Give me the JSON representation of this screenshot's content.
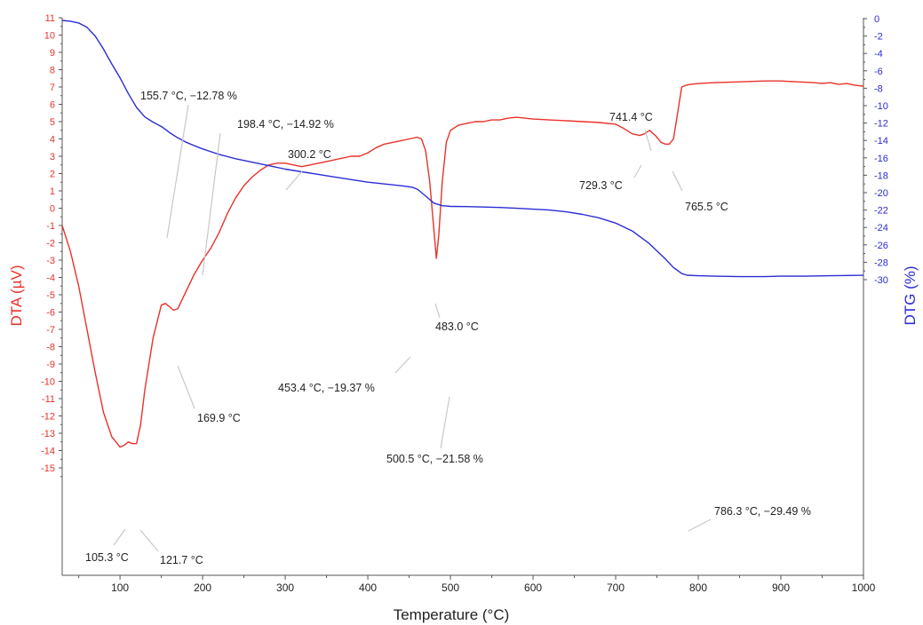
{
  "chart_data": {
    "type": "line",
    "title": "",
    "xlabel": "Temperature (°C)",
    "ylabel_left": "DTA (µV)",
    "ylabel_right": "DTG (%)",
    "xlim": [
      30,
      1000
    ],
    "ylim_left": [
      -16,
      11
    ],
    "ylim_right": [
      -31,
      0
    ],
    "x_ticks": [
      "100",
      "200",
      "300",
      "400",
      "500",
      "600",
      "700",
      "800",
      "900",
      "1000"
    ],
    "y_left_ticks": [
      "11",
      "10",
      "9",
      "8",
      "7",
      "6",
      "5",
      "4",
      "3",
      "2",
      "1",
      "0",
      "-1",
      "-2",
      "-3",
      "-4",
      "-5",
      "-6",
      "-7",
      "-8",
      "-9",
      "-10",
      "-11",
      "-12",
      "-13",
      "-14",
      "-15"
    ],
    "y_right_ticks": [
      "0",
      "-2",
      "-4",
      "-6",
      "-8",
      "-10",
      "-12",
      "-14",
      "-16",
      "-18",
      "-20",
      "-22",
      "-24",
      "-26",
      "-28",
      "-30"
    ],
    "colors": {
      "dta": "#e8322a",
      "dtg": "#2b2bd6",
      "axis": "#555555",
      "leader": "#c8c8c8"
    },
    "series": [
      {
        "axis": "left",
        "color": "#e8322a",
        "x": [
          30,
          40,
          50,
          60,
          70,
          80,
          90,
          100,
          105,
          110,
          115,
          120,
          125,
          130,
          140,
          150,
          155,
          160,
          165,
          170,
          180,
          190,
          200,
          210,
          220,
          230,
          240,
          250,
          260,
          270,
          280,
          290,
          300,
          310,
          320,
          330,
          340,
          350,
          360,
          370,
          380,
          390,
          400,
          410,
          420,
          430,
          440,
          450,
          460,
          465,
          470,
          475,
          480,
          483,
          486,
          490,
          495,
          500,
          510,
          520,
          530,
          540,
          550,
          560,
          570,
          580,
          590,
          600,
          620,
          640,
          660,
          680,
          700,
          710,
          720,
          729,
          735,
          741,
          748,
          755,
          760,
          765,
          770,
          775,
          780,
          785,
          790,
          800,
          820,
          850,
          880,
          900,
          920,
          940,
          950,
          960,
          970,
          980,
          990,
          1000
        ],
        "y": [
          -1.0,
          -2.5,
          -4.5,
          -7.0,
          -9.5,
          -11.8,
          -13.2,
          -13.8,
          -13.7,
          -13.5,
          -13.6,
          -13.6,
          -12.5,
          -10.5,
          -7.5,
          -5.6,
          -5.5,
          -5.7,
          -5.9,
          -5.8,
          -4.8,
          -3.8,
          -3.0,
          -2.3,
          -1.4,
          -0.3,
          0.6,
          1.3,
          1.8,
          2.2,
          2.5,
          2.6,
          2.6,
          2.5,
          2.4,
          2.5,
          2.6,
          2.7,
          2.8,
          2.9,
          3.0,
          3.0,
          3.2,
          3.5,
          3.7,
          3.8,
          3.9,
          4.0,
          4.1,
          4.0,
          3.3,
          1.5,
          -1.3,
          -2.9,
          -1.5,
          1.5,
          3.8,
          4.5,
          4.8,
          4.9,
          5.0,
          5.0,
          5.1,
          5.1,
          5.2,
          5.25,
          5.2,
          5.15,
          5.1,
          5.05,
          5.0,
          4.95,
          4.85,
          4.6,
          4.3,
          4.2,
          4.3,
          4.5,
          4.2,
          3.8,
          3.7,
          3.7,
          4.0,
          5.5,
          7.0,
          7.1,
          7.15,
          7.2,
          7.25,
          7.3,
          7.35,
          7.35,
          7.3,
          7.25,
          7.2,
          7.25,
          7.15,
          7.2,
          7.1,
          7.05
        ]
      },
      {
        "axis": "right",
        "color": "#2b2bd6",
        "x": [
          30,
          40,
          50,
          60,
          70,
          80,
          90,
          100,
          110,
          120,
          130,
          140,
          150,
          155.7,
          160,
          170,
          180,
          190,
          198.4,
          210,
          220,
          240,
          260,
          280,
          300,
          320,
          340,
          360,
          380,
          400,
          420,
          440,
          453.4,
          460,
          470,
          480,
          490,
          500.5,
          520,
          540,
          560,
          580,
          600,
          620,
          640,
          660,
          680,
          700,
          720,
          740,
          760,
          770,
          780,
          786.3,
          800,
          820,
          850,
          880,
          900,
          930,
          960,
          1000
        ],
        "y": [
          -0.2,
          -0.3,
          -0.5,
          -1.0,
          -2.0,
          -3.5,
          -5.2,
          -6.8,
          -8.6,
          -10.2,
          -11.3,
          -11.9,
          -12.4,
          -12.78,
          -13.1,
          -13.7,
          -14.2,
          -14.6,
          -14.92,
          -15.3,
          -15.6,
          -16.1,
          -16.5,
          -16.9,
          -17.3,
          -17.6,
          -17.9,
          -18.2,
          -18.5,
          -18.8,
          -19.0,
          -19.2,
          -19.37,
          -19.6,
          -20.4,
          -21.2,
          -21.5,
          -21.58,
          -21.6,
          -21.65,
          -21.7,
          -21.8,
          -21.9,
          -22.0,
          -22.2,
          -22.5,
          -22.9,
          -23.5,
          -24.4,
          -25.8,
          -27.6,
          -28.6,
          -29.3,
          -29.49,
          -29.55,
          -29.6,
          -29.65,
          -29.65,
          -29.6,
          -29.6,
          -29.55,
          -29.5
        ]
      }
    ],
    "annotations": [
      {
        "text": "155.7 °C, −12.78 %"
      },
      {
        "text": "198.4 °C, −14.92 %"
      },
      {
        "text": "300.2 °C"
      },
      {
        "text": "483.0 °C"
      },
      {
        "text": "741.4 °C"
      },
      {
        "text": "729.3 °C"
      },
      {
        "text": "765.5 °C"
      },
      {
        "text": "169.9 °C"
      },
      {
        "text": "453.4 °C, −19.37 %"
      },
      {
        "text": "500.5 °C, −21.58 %"
      },
      {
        "text": "786.3 °C, −29.49 %"
      },
      {
        "text": "105.3 °C"
      },
      {
        "text": "121.7 °C"
      }
    ]
  }
}
